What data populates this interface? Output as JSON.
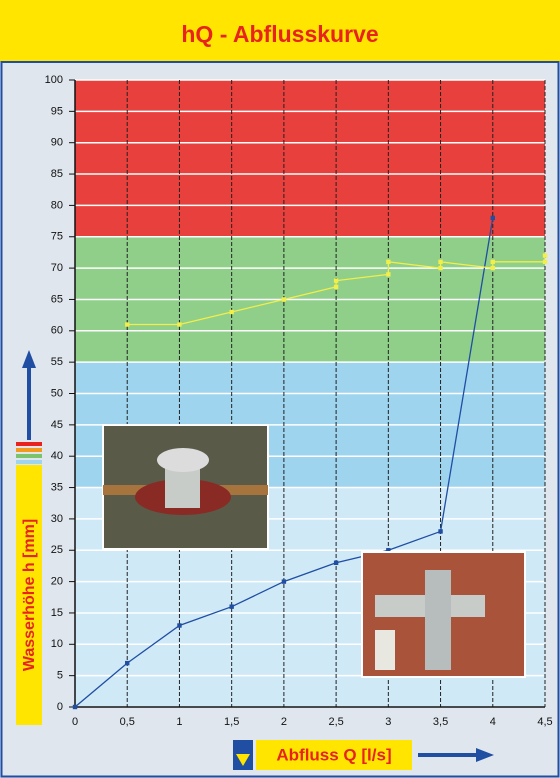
{
  "chart_data": {
    "type": "line",
    "title": "hQ - Abflusskurve",
    "x_label": "Abfluss Q [l/s]",
    "y_label": "Wasserhöhe h [mm]",
    "xlim": [
      0,
      4.5
    ],
    "ylim": [
      0,
      100
    ],
    "xticks": [
      0,
      {
        "value": 0.5,
        "label": "0,5"
      },
      1,
      {
        "value": 1.5,
        "label": "1,5"
      },
      2,
      {
        "value": 2.5,
        "label": "2,5"
      },
      3,
      {
        "value": 3.5,
        "label": "3,5"
      },
      4,
      {
        "value": 4.5,
        "label": "4,5"
      }
    ],
    "yticks": [
      0,
      5,
      10,
      15,
      20,
      25,
      30,
      35,
      40,
      45,
      50,
      55,
      60,
      65,
      70,
      75,
      80,
      85,
      90,
      95,
      100
    ],
    "grid": true,
    "bands": [
      {
        "from": 0,
        "to": 35,
        "color": "#cfe9f7"
      },
      {
        "from": 35,
        "to": 55,
        "color": "#9fd4ef"
      },
      {
        "from": 55,
        "to": 75,
        "color": "#8fcf8a"
      },
      {
        "from": 75,
        "to": 100,
        "color": "#e8403c"
      }
    ],
    "series": [
      {
        "color": "#1f4ea3",
        "x": [
          0,
          0.5,
          1,
          1.5,
          2,
          2.5,
          3,
          3.5,
          4
        ],
        "values": [
          0,
          7,
          13,
          16,
          20,
          23,
          25,
          28,
          78
        ]
      },
      {
        "color": "#f2ee4a",
        "x": [
          0.5,
          1,
          1.5,
          2,
          2.5,
          2.5,
          3,
          3,
          3.5,
          3.5,
          4,
          4,
          4.5,
          4.5
        ],
        "values": [
          61,
          61,
          63,
          65,
          67,
          68,
          69,
          71,
          70,
          71,
          70,
          71,
          71,
          72
        ]
      }
    ]
  }
}
